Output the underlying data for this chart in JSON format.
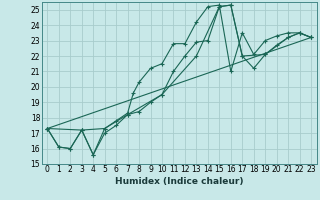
{
  "title": "",
  "xlabel": "Humidex (Indice chaleur)",
  "bg_color": "#c8e8e8",
  "grid_color": "#a8cccc",
  "line_color": "#1a6655",
  "xlim": [
    -0.5,
    23.5
  ],
  "ylim": [
    15,
    25.5
  ],
  "yticks": [
    15,
    16,
    17,
    18,
    19,
    20,
    21,
    22,
    23,
    24,
    25
  ],
  "xticks": [
    0,
    1,
    2,
    3,
    4,
    5,
    6,
    7,
    8,
    9,
    10,
    11,
    12,
    13,
    14,
    15,
    16,
    17,
    18,
    19,
    20,
    21,
    22,
    23
  ],
  "lines": [
    {
      "x": [
        0,
        1,
        2,
        3,
        4,
        5,
        6,
        7,
        7.5,
        8,
        9,
        10,
        11,
        12,
        13,
        14,
        15,
        16,
        17,
        18,
        19,
        20,
        21,
        22,
        23
      ],
      "y": [
        17.3,
        16.1,
        16.0,
        17.2,
        15.6,
        17.3,
        17.8,
        18.3,
        19.6,
        20.3,
        21.2,
        21.5,
        22.8,
        22.8,
        24.2,
        25.2,
        25.3,
        21.0,
        23.5,
        22.1,
        23.0,
        23.3,
        23.5,
        23.5,
        23.2
      ],
      "markers": true
    },
    {
      "x": [
        0,
        1,
        2,
        3,
        4,
        5,
        6,
        7,
        8,
        9,
        10,
        11,
        12,
        13,
        14,
        15,
        16,
        17,
        18,
        19,
        20,
        21,
        22,
        23
      ],
      "y": [
        17.3,
        16.1,
        16.0,
        17.2,
        15.6,
        17.0,
        17.5,
        18.2,
        18.4,
        19.0,
        19.5,
        21.0,
        22.0,
        22.9,
        23.0,
        25.2,
        25.3,
        22.0,
        21.2,
        22.1,
        22.7,
        23.2,
        23.5,
        23.2
      ],
      "markers": true
    },
    {
      "x": [
        0,
        3,
        5,
        7,
        10,
        13,
        15,
        16,
        17,
        19,
        21,
        22,
        23
      ],
      "y": [
        17.3,
        17.2,
        17.3,
        18.2,
        19.5,
        22.0,
        25.2,
        25.3,
        22.0,
        22.1,
        23.2,
        23.5,
        23.2
      ],
      "markers": true
    },
    {
      "x": [
        0,
        23
      ],
      "y": [
        17.3,
        23.2
      ],
      "markers": false
    }
  ]
}
